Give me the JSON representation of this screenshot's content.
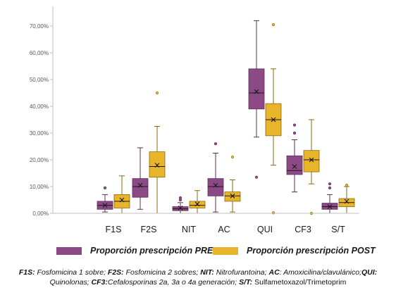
{
  "chart_data": {
    "type": "boxplot",
    "categories": [
      "F1S",
      "F2S",
      "NIT",
      "AC",
      "QUI",
      "CF3",
      "S/T"
    ],
    "y_ticks": [
      "0,00%",
      "10,00%",
      "20,00%",
      "30,00%",
      "40,00%",
      "50,00%",
      "60,00%",
      "70,00%"
    ],
    "ylim": [
      0,
      75
    ],
    "colors": {
      "PRE": "#8b4a86",
      "POST": "#e8b42a"
    },
    "series": [
      {
        "name": "Proporción prescripción PRE",
        "key": "PRE",
        "boxes": [
          {
            "whisker_low": 0.5,
            "q1": 1.5,
            "median": 3,
            "q3": 4.5,
            "whisker_high": 7,
            "mean": 3,
            "outliers": [
              9.5
            ]
          },
          {
            "whisker_low": 1.5,
            "q1": 6,
            "median": 10,
            "q3": 13,
            "whisker_high": 24.5,
            "mean": 10.5,
            "outliers": []
          },
          {
            "whisker_low": 0,
            "q1": 1,
            "median": 1.7,
            "q3": 2.5,
            "whisker_high": 4,
            "mean": 2,
            "outliers": [
              5,
              5.8
            ]
          },
          {
            "whisker_low": 0.5,
            "q1": 6.5,
            "median": 10,
            "q3": 13,
            "whisker_high": 22.5,
            "mean": 10.5,
            "outliers": [
              26
            ]
          },
          {
            "whisker_low": 28.5,
            "q1": 39,
            "median": 45,
            "q3": 54,
            "whisker_high": 72,
            "mean": 45.5,
            "outliers": [
              13.5
            ]
          },
          {
            "whisker_low": 8,
            "q1": 14.5,
            "median": 16,
            "q3": 21.5,
            "whisker_high": 27.5,
            "mean": 17.5,
            "outliers": [
              33,
              30
            ]
          },
          {
            "whisker_low": 0,
            "q1": 1.5,
            "median": 2.5,
            "q3": 3.8,
            "whisker_high": 7,
            "mean": 2.5,
            "outliers": [
              9.5,
              11
            ]
          }
        ]
      },
      {
        "name": "Proporción prescripción POST",
        "key": "POST",
        "boxes": [
          {
            "whisker_low": 0,
            "q1": 2,
            "median": 4.5,
            "q3": 7,
            "whisker_high": 14,
            "mean": 5,
            "outliers": []
          },
          {
            "whisker_low": 0,
            "q1": 13.5,
            "median": 17.5,
            "q3": 23,
            "whisker_high": 32.5,
            "mean": 18,
            "outliers": [
              45
            ]
          },
          {
            "whisker_low": 0,
            "q1": 2,
            "median": 3,
            "q3": 4.5,
            "whisker_high": 8.5,
            "mean": 3.5,
            "outliers": []
          },
          {
            "whisker_low": 0.5,
            "q1": 4.5,
            "median": 6.5,
            "q3": 8,
            "whisker_high": 12.5,
            "mean": 6.5,
            "outliers": [
              21
            ]
          },
          {
            "whisker_low": 18,
            "q1": 29,
            "median": 35,
            "q3": 41,
            "whisker_high": 54,
            "mean": 35,
            "outliers": [
              0.2,
              70.5
            ]
          },
          {
            "whisker_low": 11,
            "q1": 15.5,
            "median": 20,
            "q3": 23.5,
            "whisker_high": 35,
            "mean": 20,
            "outliers": [
              0
            ]
          },
          {
            "whisker_low": 0,
            "q1": 2.5,
            "median": 4,
            "q3": 5.5,
            "whisker_high": 10,
            "mean": 4.5,
            "outliers": [
              10.5
            ]
          }
        ]
      }
    ],
    "legend_position": "bottom",
    "grid": false
  },
  "legend": {
    "pre_label": "Proporción prescripción PRE",
    "post_label": "Proporción prescripción POST"
  },
  "footnote": {
    "f1s_key": "F1S:",
    "f1s_text": " Fosfomicina 1 sobre; ",
    "f2s_key": "F2S:",
    "f2s_text": " Fosfomicina 2 sobres; ",
    "nit_key": "NIT:",
    "nit_text": " Nitrofurantoina; ",
    "ac_key": "AC",
    "ac_text": ": Amoxicilina/clavulánico;",
    "qui_key": "QUI:",
    "qui_text": "Quinolonas; ",
    "cf3_key": "CF3:",
    "cf3_text": "Cefalosporinas 2a, 3a o 4a generación",
    "st_sep": "; ",
    "st_key": "S/T:",
    "st_text": " Sulfametoxazol/Trimetoprim"
  }
}
